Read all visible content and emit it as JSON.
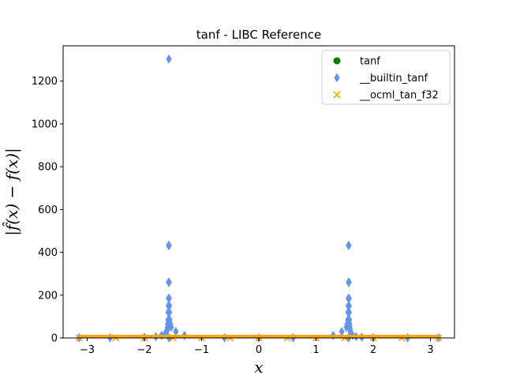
{
  "chart_data": {
    "type": "scatter",
    "title": "tanf - LIBC Reference",
    "xlabel": "x",
    "ylabel": "|f̂(x) − f(x)|",
    "xlim": [
      -3.42,
      3.42
    ],
    "ylim": [
      0,
      1365
    ],
    "xticks": [
      -3,
      -2,
      -1,
      0,
      1,
      2,
      3
    ],
    "xtick_labels": [
      "−3",
      "−2",
      "−1",
      "0",
      "1",
      "2",
      "3"
    ],
    "yticks": [
      0,
      200,
      400,
      600,
      800,
      1000,
      1200
    ],
    "ytick_labels": [
      "0",
      "200",
      "400",
      "600",
      "800",
      "1000",
      "1200"
    ],
    "grid": false,
    "legend_position": "top-right",
    "series": [
      {
        "name": "tanf",
        "marker": "circle",
        "color": "#008000",
        "x": [],
        "y": []
      },
      {
        "name": "__builtin_tanf",
        "marker": "thin_diamond",
        "color": "#6495ed",
        "x": [
          -3.14,
          -2.6,
          -2.0,
          -1.8,
          -1.7,
          -1.64,
          -1.61,
          -1.6,
          -1.595,
          -1.59,
          -1.585,
          -1.5815,
          -1.579,
          -1.5775,
          -1.5765,
          -1.5758,
          -1.5712,
          -1.5705,
          -1.5698,
          -1.5684,
          -1.5665,
          -1.564,
          -1.5615,
          -1.556,
          -1.546,
          -1.53,
          -1.45,
          -1.3,
          -0.6,
          0.0,
          0.6,
          1.3,
          1.45,
          1.53,
          1.546,
          1.556,
          1.5615,
          1.564,
          1.5665,
          1.5684,
          1.5698,
          1.5705,
          1.5712,
          1.5758,
          1.5765,
          1.5775,
          1.579,
          1.5815,
          1.585,
          1.59,
          1.595,
          1.6,
          1.61,
          1.64,
          1.7,
          1.8,
          2.0,
          2.6,
          3.14
        ],
        "y": [
          1,
          1,
          3,
          6,
          12,
          20,
          30,
          40,
          50,
          65,
          85,
          120,
          150,
          185,
          260,
          432,
          1303,
          1,
          432,
          260,
          185,
          150,
          120,
          85,
          65,
          50,
          30,
          12,
          1,
          0,
          1,
          12,
          30,
          50,
          65,
          85,
          120,
          150,
          185,
          260,
          432,
          1,
          432,
          260,
          185,
          150,
          120,
          85,
          65,
          50,
          40,
          30,
          20,
          12,
          6,
          3,
          1,
          1,
          1
        ]
      },
      {
        "name": "__ocml_tan_f32",
        "marker": "x",
        "color": "#ffa500",
        "x": [
          -3.14,
          -2.5,
          -2.0,
          -1.5,
          -1.0,
          -0.5,
          0.0,
          0.5,
          1.0,
          1.5,
          2.0,
          2.5,
          3.14
        ],
        "y": [
          0,
          0,
          0,
          0,
          0,
          0,
          0,
          0,
          0,
          0,
          0,
          0,
          0
        ]
      }
    ]
  }
}
